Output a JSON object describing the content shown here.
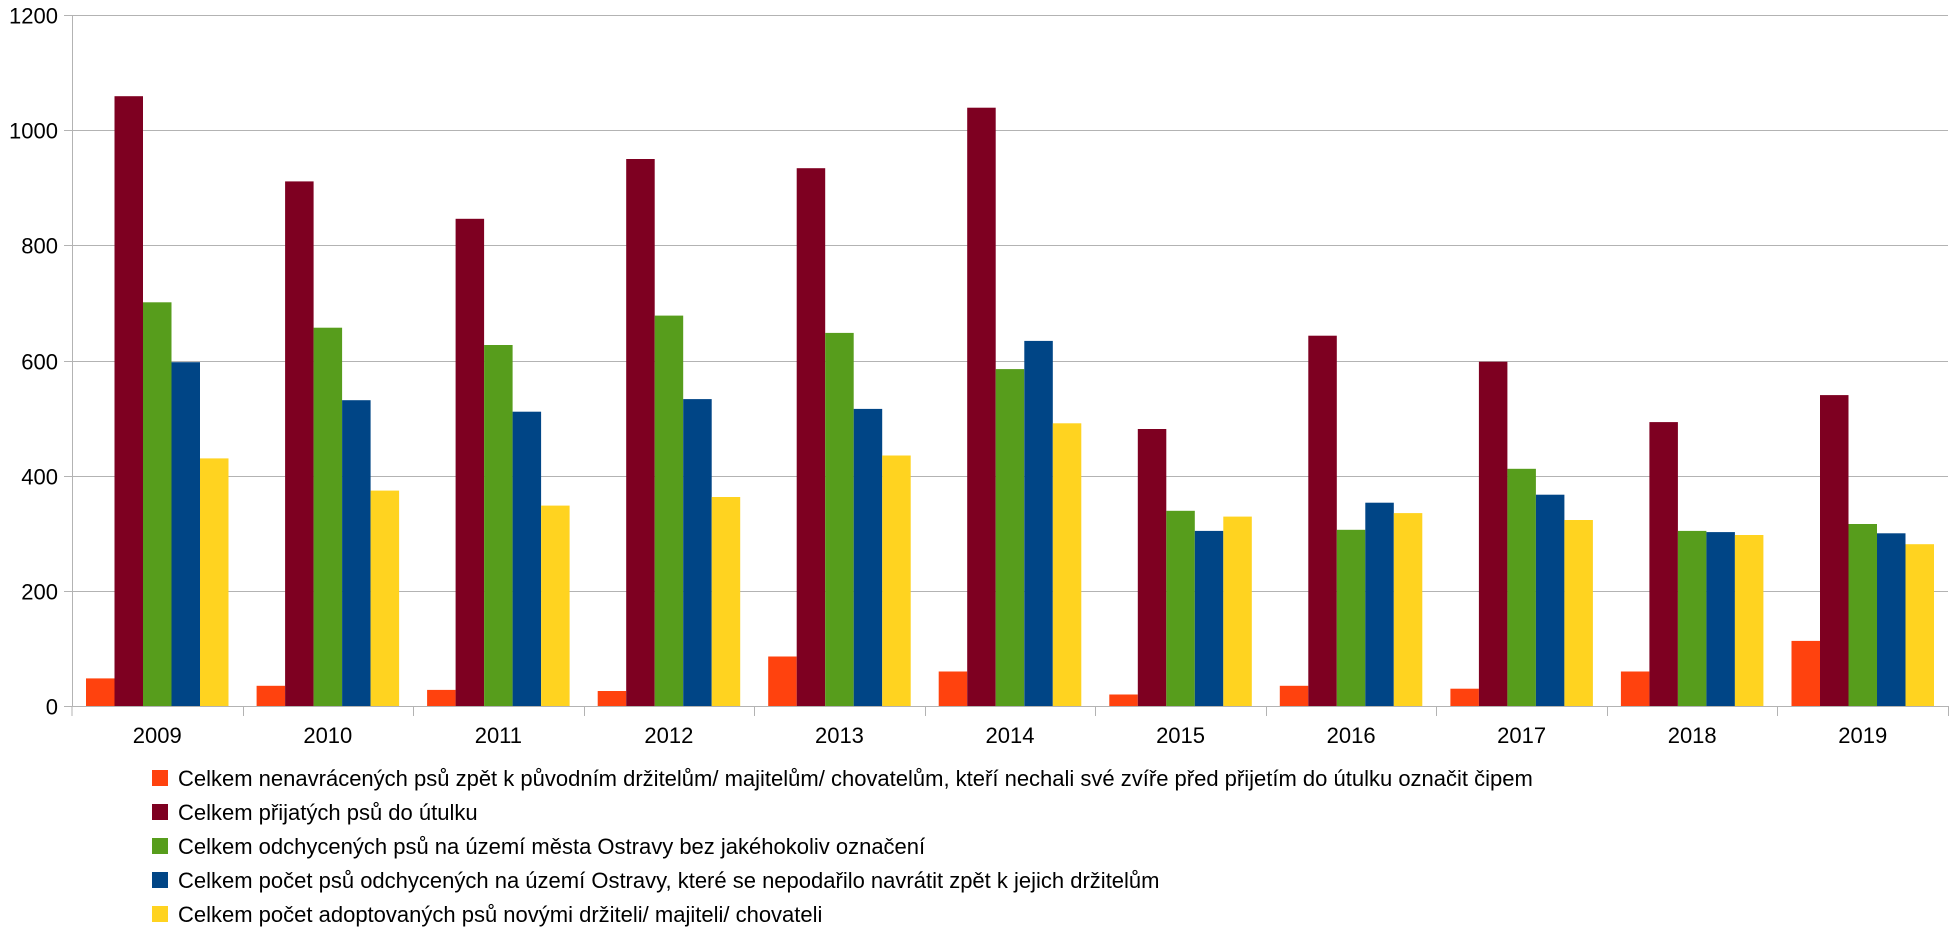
{
  "chart_data": {
    "type": "bar",
    "title": "",
    "xlabel": "",
    "ylabel": "",
    "ylim": [
      0,
      1200
    ],
    "yticks": [
      0,
      200,
      400,
      600,
      800,
      1000,
      1200
    ],
    "grid": "horizontal",
    "legend_position": "bottom",
    "categories": [
      "2009",
      "2010",
      "2011",
      "2012",
      "2013",
      "2014",
      "2015",
      "2016",
      "2017",
      "2018",
      "2019"
    ],
    "series": [
      {
        "name": "Celkem nenavrácených psů zpět k původním držitelům/ majitelům/ chovatelům, kteří nechali své zvíře před přijetím do útulku označit čipem",
        "color": "#ff420e",
        "values": [
          48,
          35,
          28,
          26,
          86,
          60,
          20,
          35,
          30,
          60,
          113
        ]
      },
      {
        "name": "Celkem přijatých psů do útulku",
        "color": "#7e0021",
        "values": [
          1059,
          911,
          846,
          950,
          934,
          1039,
          481,
          643,
          598,
          493,
          540
        ]
      },
      {
        "name": "Celkem odchycených psů na území města Ostravy bez jakéhokoliv označení",
        "color": "#579d1c",
        "values": [
          701,
          657,
          627,
          678,
          648,
          585,
          339,
          306,
          412,
          304,
          316
        ]
      },
      {
        "name": "Celkem počet psů odchycených na území Ostravy, které se nepodařilo navrátit zpět k jejich držitelům",
        "color": "#004586",
        "values": [
          597,
          531,
          511,
          533,
          516,
          634,
          304,
          353,
          367,
          302,
          300
        ]
      },
      {
        "name": "Celkem počet adoptovaných psů novými držiteli/ majiteli/ chovateli",
        "color": "#ffd320",
        "values": [
          430,
          374,
          348,
          363,
          435,
          491,
          329,
          335,
          323,
          297,
          281
        ]
      }
    ]
  }
}
